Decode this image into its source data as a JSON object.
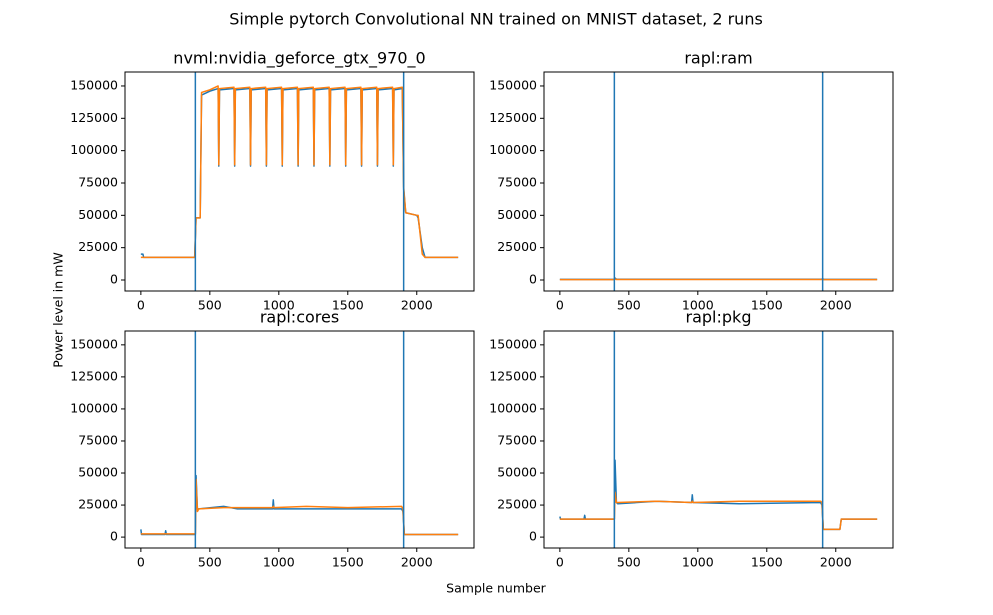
{
  "title": "Simple pytorch Convolutional NN trained on MNIST dataset, 2 runs",
  "x_label": "Sample number",
  "y_label": "Power level in mW",
  "chart_data": [
    {
      "type": "line",
      "title": "nvml:nvidia_geforce_gtx_970_0",
      "x": [
        0,
        15,
        20,
        390,
        400,
        430,
        440,
        500,
        560,
        565,
        570,
        675,
        680,
        685,
        790,
        795,
        800,
        905,
        910,
        915,
        1020,
        1025,
        1030,
        1135,
        1140,
        1145,
        1250,
        1255,
        1260,
        1365,
        1370,
        1375,
        1480,
        1485,
        1490,
        1595,
        1600,
        1605,
        1710,
        1715,
        1720,
        1825,
        1830,
        1835,
        1895,
        1905,
        1920,
        2000,
        2010,
        2040,
        2060,
        2300
      ],
      "series": [
        {
          "color": "#1f77b4",
          "values": [
            20000,
            20000,
            17500,
            17500,
            48000,
            48000,
            143000,
            146000,
            148000,
            88000,
            147000,
            148000,
            88000,
            147000,
            148000,
            88000,
            147000,
            148000,
            88000,
            147000,
            148000,
            88000,
            147000,
            148000,
            88000,
            147000,
            148000,
            88000,
            147000,
            148000,
            88000,
            147000,
            148000,
            88000,
            147000,
            148000,
            88000,
            147000,
            148000,
            88000,
            147000,
            148000,
            88000,
            147000,
            148000,
            70000,
            52000,
            50000,
            48000,
            25000,
            17500,
            17500
          ]
        },
        {
          "color": "#ff7f0e",
          "values": [
            17500,
            17500,
            17500,
            17500,
            48000,
            48000,
            145000,
            147000,
            150000,
            89000,
            148000,
            149000,
            89000,
            148000,
            149000,
            89000,
            148000,
            149000,
            89000,
            148000,
            149000,
            89000,
            148000,
            149000,
            89000,
            148000,
            149000,
            89000,
            148000,
            149000,
            89000,
            148000,
            149000,
            89000,
            148000,
            149000,
            89000,
            148000,
            149000,
            89000,
            148000,
            149000,
            89000,
            148000,
            149000,
            72000,
            52000,
            50000,
            50000,
            20000,
            17500,
            17500
          ]
        }
      ],
      "vlines": [
        395,
        1905
      ],
      "vline_color": "#1f77b4",
      "xlim": [
        -115,
        2415
      ],
      "ylim": [
        -8500,
        160800
      ],
      "xticks": [
        0,
        500,
        1000,
        1500,
        2000
      ],
      "yticks": [
        0,
        25000,
        50000,
        75000,
        100000,
        125000,
        150000
      ]
    },
    {
      "type": "line",
      "title": "rapl:ram",
      "x": [
        0,
        395,
        400,
        410,
        1900,
        1905,
        1910,
        2300
      ],
      "series": [
        {
          "color": "#1f77b4",
          "values": [
            500,
            500,
            1500,
            600,
            600,
            1200,
            500,
            500
          ]
        },
        {
          "color": "#ff7f0e",
          "values": [
            300,
            300,
            700,
            400,
            400,
            600,
            300,
            300
          ]
        }
      ],
      "vlines": [
        395,
        1905
      ],
      "vline_color": "#1f77b4",
      "xlim": [
        -115,
        2415
      ],
      "ylim": [
        -8500,
        160800
      ],
      "xticks": [
        0,
        500,
        1000,
        1500,
        2000
      ],
      "yticks": [
        0,
        25000,
        50000,
        75000,
        100000,
        125000,
        150000
      ]
    },
    {
      "type": "line",
      "title": "rapl:cores",
      "x": [
        0,
        5,
        175,
        180,
        185,
        395,
        400,
        410,
        420,
        600,
        700,
        955,
        960,
        965,
        1200,
        1500,
        1890,
        1900,
        1910,
        2300
      ],
      "series": [
        {
          "color": "#1f77b4",
          "values": [
            6000,
            2000,
            2000,
            5000,
            2000,
            2000,
            48000,
            22000,
            22000,
            24000,
            22000,
            22000,
            29000,
            22000,
            22000,
            22000,
            22000,
            20000,
            2000,
            2000
          ]
        },
        {
          "color": "#ff7f0e",
          "values": [
            2500,
            2500,
            2500,
            2500,
            2500,
            2500,
            45000,
            20000,
            22000,
            23000,
            23000,
            23000,
            24000,
            23000,
            24000,
            23000,
            24000,
            22000,
            2000,
            2000
          ]
        }
      ],
      "vlines": [
        395,
        1905
      ],
      "vline_color": "#1f77b4",
      "xlim": [
        -115,
        2415
      ],
      "ylim": [
        -8500,
        160800
      ],
      "xticks": [
        0,
        500,
        1000,
        1500,
        2000
      ],
      "yticks": [
        0,
        25000,
        50000,
        75000,
        100000,
        125000,
        150000
      ]
    },
    {
      "type": "line",
      "title": "rapl:pkg",
      "x": [
        0,
        5,
        175,
        180,
        185,
        395,
        400,
        410,
        420,
        700,
        955,
        960,
        965,
        1300,
        1890,
        1900,
        1910,
        2030,
        2040,
        2300
      ],
      "series": [
        {
          "color": "#1f77b4",
          "values": [
            16000,
            14000,
            14000,
            17000,
            14000,
            14000,
            60000,
            27000,
            26000,
            28000,
            27000,
            33000,
            27000,
            26000,
            27000,
            25000,
            6000,
            6000,
            14000,
            14000
          ]
        },
        {
          "color": "#ff7f0e",
          "values": [
            14000,
            14000,
            14000,
            14000,
            14000,
            14000,
            35000,
            27000,
            27000,
            28000,
            27000,
            28000,
            27000,
            28000,
            28000,
            27000,
            6000,
            6000,
            14000,
            14000
          ]
        }
      ],
      "vlines": [
        395,
        1905
      ],
      "vline_color": "#1f77b4",
      "xlim": [
        -115,
        2415
      ],
      "ylim": [
        -8500,
        160800
      ],
      "xticks": [
        0,
        500,
        1000,
        1500,
        2000
      ],
      "yticks": [
        0,
        25000,
        50000,
        75000,
        100000,
        125000,
        150000
      ]
    }
  ]
}
